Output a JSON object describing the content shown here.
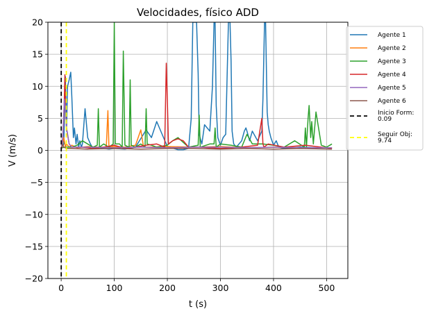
{
  "chart_data": {
    "type": "line",
    "title": "Velocidades, físico ADD",
    "xlabel": "t (s)",
    "ylabel": "V (m/s)",
    "xlim": [
      -25,
      540
    ],
    "ylim": [
      -20,
      20
    ],
    "xticks": [
      0,
      100,
      200,
      300,
      400,
      500
    ],
    "yticks": [
      -20,
      -15,
      -10,
      -5,
      0,
      5,
      10,
      15,
      20
    ],
    "xtick_labels": [
      "0",
      "100",
      "200",
      "300",
      "400",
      "500"
    ],
    "ytick_labels": [
      "−20",
      "−15",
      "−10",
      "−5",
      "0",
      "5",
      "10",
      "15",
      "20"
    ],
    "grid": true,
    "legend_position": "outside-right",
    "series": [
      {
        "name": "Agente 1",
        "color": "#1f77b4",
        "x": [
          1,
          5,
          8,
          10,
          12,
          15,
          18,
          20,
          23,
          25,
          28,
          30,
          33,
          35,
          38,
          40,
          45,
          50,
          55,
          60,
          70,
          80,
          90,
          100,
          120,
          140,
          160,
          170,
          180,
          200,
          220,
          230,
          240,
          245,
          248,
          250,
          252,
          255,
          258,
          260,
          265,
          270,
          280,
          285,
          288,
          290,
          292,
          295,
          300,
          305,
          310,
          315,
          318,
          320,
          322,
          325,
          330,
          340,
          345,
          348,
          350,
          355,
          360,
          370,
          378,
          380,
          383,
          385,
          388,
          390,
          392,
          395,
          400,
          405,
          410,
          420,
          450,
          480,
          510
        ],
        "y": [
          0.5,
          1.0,
          11.5,
          3.0,
          10.0,
          11.0,
          12.2,
          8.5,
          2.0,
          3.5,
          1.0,
          2.5,
          0.5,
          1.5,
          0.5,
          1.0,
          6.5,
          2.0,
          1.0,
          0.3,
          0.5,
          0.3,
          0.2,
          0.3,
          0.2,
          0.5,
          3.2,
          2.0,
          4.5,
          0.6,
          0.1,
          0.1,
          0.3,
          5.0,
          20,
          20,
          20,
          20,
          12.0,
          2.5,
          1.0,
          4.0,
          3.0,
          10.0,
          20,
          20,
          7.0,
          2.0,
          0.8,
          2.0,
          2.5,
          20,
          20,
          14.0,
          3.0,
          1.0,
          0.5,
          1.5,
          3.0,
          3.5,
          3.0,
          1.5,
          3.0,
          1.5,
          3.0,
          8.0,
          20,
          20,
          6.0,
          4.0,
          3.0,
          2.0,
          0.8,
          1.5,
          0.5,
          0.3,
          0.5,
          0.4,
          0.4
        ]
      },
      {
        "name": "Agente 2",
        "color": "#ff7f0e",
        "x": [
          1,
          5,
          8,
          10,
          15,
          20,
          30,
          50,
          70,
          85,
          88,
          90,
          100,
          120,
          140,
          150,
          155,
          160,
          200,
          250,
          300,
          350,
          400,
          450,
          510
        ],
        "y": [
          0.5,
          2.0,
          0.5,
          1.0,
          0.5,
          0.8,
          0.4,
          0.6,
          0.5,
          0.5,
          6.2,
          0.5,
          0.6,
          0.5,
          0.8,
          3.2,
          0.6,
          0.5,
          0.6,
          0.5,
          0.6,
          0.4,
          0.5,
          0.4,
          0.4
        ]
      },
      {
        "name": "Agente 3",
        "color": "#2ca02c",
        "x": [
          1,
          10,
          20,
          30,
          40,
          50,
          60,
          68,
          70,
          72,
          80,
          90,
          98,
          100,
          102,
          110,
          115,
          117,
          120,
          128,
          130,
          132,
          140,
          150,
          158,
          160,
          162,
          170,
          180,
          200,
          210,
          220,
          240,
          258,
          260,
          262,
          280,
          288,
          290,
          292,
          300,
          320,
          340,
          350,
          360,
          380,
          400,
          420,
          440,
          458,
          460,
          462,
          465,
          467,
          470,
          472,
          475,
          480,
          490,
          500,
          510
        ],
        "y": [
          0.4,
          0.5,
          0.5,
          0.8,
          1.5,
          1.0,
          0.5,
          0.8,
          6.5,
          0.5,
          1.0,
          0.5,
          1.0,
          20,
          1.0,
          1.0,
          0.5,
          15.5,
          0.8,
          0.5,
          11.0,
          0.8,
          0.5,
          1.0,
          0.5,
          6.5,
          1.0,
          0.8,
          0.5,
          0.8,
          1.5,
          2.0,
          0.5,
          0.8,
          5.5,
          0.5,
          1.0,
          1.0,
          3.5,
          0.5,
          1.0,
          0.8,
          0.5,
          2.5,
          1.0,
          1.0,
          0.8,
          0.5,
          1.5,
          0.5,
          3.5,
          0.5,
          5.0,
          7.0,
          2.0,
          4.5,
          1.0,
          6.0,
          0.8,
          0.5,
          1.0
        ]
      },
      {
        "name": "Agente 4",
        "color": "#d62728",
        "x": [
          1,
          3,
          5,
          7,
          8,
          10,
          15,
          20,
          40,
          60,
          80,
          100,
          120,
          140,
          160,
          180,
          195,
          198,
          200,
          202,
          210,
          220,
          230,
          240,
          260,
          300,
          340,
          370,
          378,
          380,
          382,
          390,
          420,
          460,
          510
        ],
        "y": [
          0.5,
          2.0,
          5.0,
          11.8,
          7.0,
          3.5,
          1.0,
          0.5,
          0.5,
          0.3,
          0.5,
          0.8,
          0.3,
          0.5,
          0.8,
          1.0,
          0.5,
          13.6,
          8.0,
          1.0,
          1.5,
          1.8,
          1.5,
          0.5,
          0.5,
          0.3,
          0.5,
          0.8,
          5.0,
          1.0,
          0.5,
          1.0,
          0.5,
          0.8,
          0.3
        ]
      },
      {
        "name": "Agente 5",
        "color": "#9467bd",
        "x": [
          1,
          3,
          5,
          6,
          8,
          10,
          15,
          20,
          50,
          100,
          150,
          200,
          250,
          300,
          350,
          400,
          450,
          510
        ],
        "y": [
          0.5,
          2.0,
          6.0,
          8.0,
          6.5,
          3.5,
          1.0,
          0.5,
          0.5,
          0.4,
          0.5,
          0.4,
          0.5,
          0.5,
          0.4,
          0.5,
          0.4,
          0.4
        ]
      },
      {
        "name": "Agente 6",
        "color": "#8c564b",
        "x": [
          1,
          3,
          5,
          10,
          20,
          50,
          100,
          150,
          200,
          250,
          300,
          350,
          400,
          450,
          510
        ],
        "y": [
          0.3,
          1.0,
          0.5,
          0.3,
          0.3,
          0.2,
          0.3,
          0.2,
          0.3,
          0.3,
          0.2,
          0.3,
          0.2,
          0.3,
          0.2
        ]
      }
    ],
    "vlines": [
      {
        "name": "Inicio Form:\n0.09",
        "label_lines": [
          "Inicio Form:",
          "0.09"
        ],
        "x": 0.09,
        "color": "#000000",
        "style": "dashed"
      },
      {
        "name": "Seguir Obj:\n9.74",
        "label_lines": [
          "Seguir Obj:",
          "9.74"
        ],
        "x": 9.74,
        "color": "#ffff00",
        "style": "dashed"
      }
    ]
  }
}
